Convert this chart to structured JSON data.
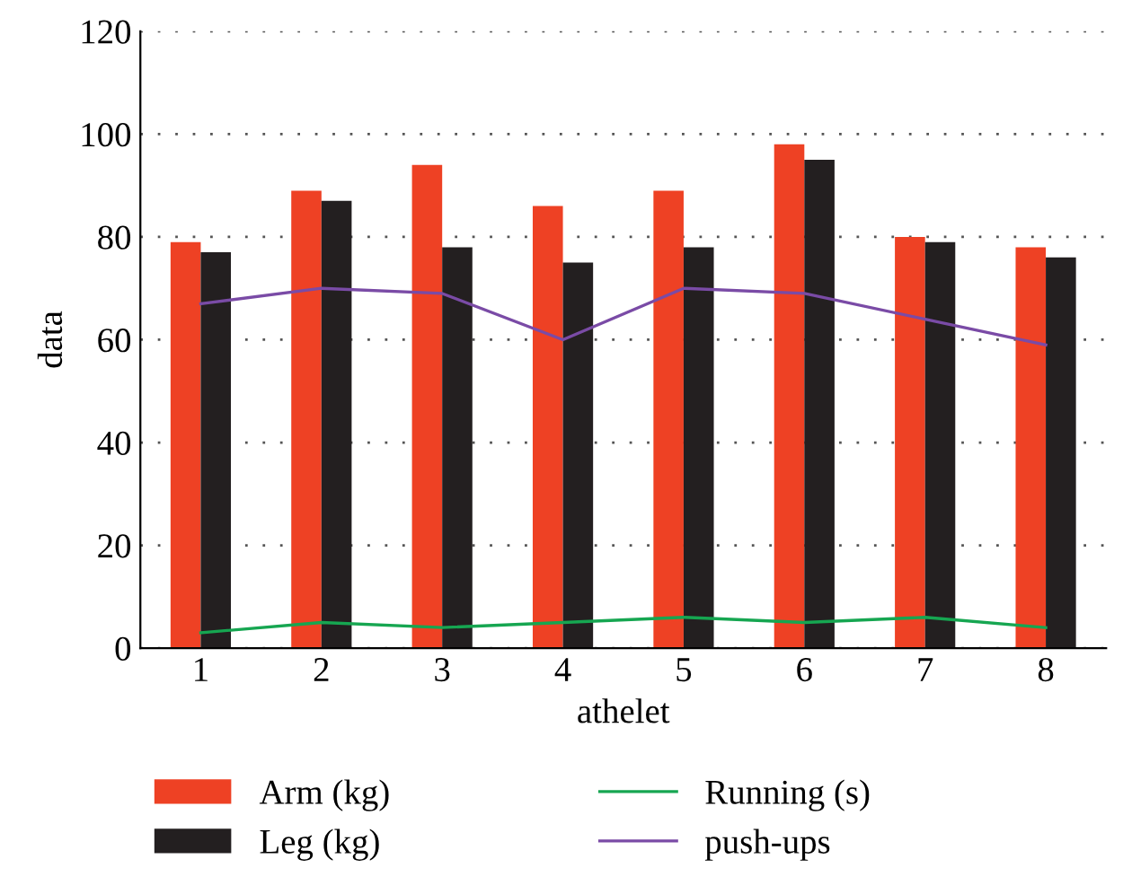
{
  "chart_data": {
    "type": "bar",
    "xlabel": "athelet",
    "ylabel": "data",
    "categories": [
      "1",
      "2",
      "3",
      "4",
      "5",
      "6",
      "7",
      "8"
    ],
    "series": [
      {
        "name": "Arm (kg)",
        "color": "#ee4124",
        "values": [
          79,
          89,
          94,
          86,
          89,
          98,
          80,
          78
        ]
      },
      {
        "name": "Leg (kg)",
        "color": "#231f20",
        "values": [
          77,
          87,
          78,
          75,
          78,
          95,
          79,
          76
        ]
      },
      {
        "name": "Running (s)",
        "type": "line",
        "color": "#16a651",
        "values": [
          3,
          5,
          4,
          5,
          6,
          5,
          6,
          4
        ]
      },
      {
        "name": "push-ups",
        "type": "line",
        "color": "#7a4ba6",
        "values": [
          67,
          70,
          69,
          60,
          70,
          69,
          64,
          59
        ]
      }
    ],
    "ylim": [
      0,
      120
    ],
    "yticks": [
      0,
      20,
      40,
      60,
      80,
      100,
      120
    ],
    "grid": "y",
    "legend": "bottom",
    "marker": "none",
    "line_style": "solid"
  }
}
